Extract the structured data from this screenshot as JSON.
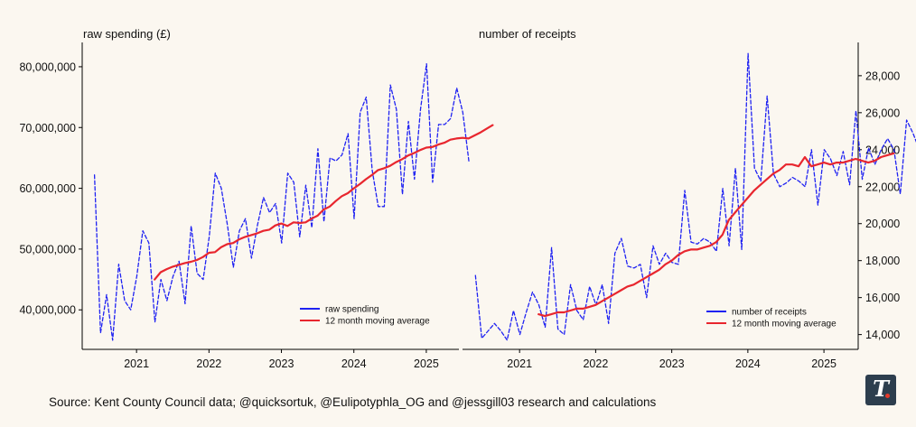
{
  "source": "Source: Kent County Council data; @quicksortuk, @Eulipotyphla_OG and @jessgill03 research and calculations",
  "logo": {
    "letter": "T",
    "name": "publisher-logo"
  },
  "colors": {
    "background": "#fbf7f0",
    "raw": "#1f22f2",
    "avg": "#e8262e",
    "logo_bg": "#2d3e4e",
    "logo_dot": "#e5392b"
  },
  "chart_data": [
    {
      "type": "line",
      "title": "raw spending (£)",
      "xlabel": "",
      "ylabel": "",
      "xlim": [
        2020.25,
        2025.45
      ],
      "ylim": [
        33500000,
        84000000
      ],
      "x_ticks": [
        2021,
        2022,
        2023,
        2024,
        2025
      ],
      "x_tick_labels": [
        "2021",
        "2022",
        "2023",
        "2024",
        "2025"
      ],
      "y_ticks": [
        40000000,
        50000000,
        60000000,
        70000000,
        80000000
      ],
      "y_tick_labels": [
        "40,000,000",
        "50,000,000",
        "60,000,000",
        "70,000,000",
        "80,000,000"
      ],
      "y_axis_side": "left",
      "legend_position": "lower-right",
      "series": [
        {
          "name": "raw spending",
          "style": "dashed",
          "color": "#1f22f2",
          "start": 2020.42,
          "values": [
            62200000,
            36200000,
            42500000,
            35000000,
            47500000,
            41500000,
            40000000,
            45500000,
            53000000,
            51000000,
            38000000,
            45000000,
            41500000,
            45500000,
            48000000,
            41000000,
            53800000,
            46000000,
            45000000,
            52000000,
            62500000,
            60000000,
            54000000,
            47000000,
            53000000,
            55000000,
            48500000,
            54000000,
            58500000,
            56000000,
            57500000,
            51000000,
            62500000,
            61000000,
            52000000,
            60500000,
            53500000,
            66500000,
            54500000,
            65000000,
            64500000,
            65500000,
            69000000,
            55000000,
            72500000,
            75000000,
            63000000,
            57000000,
            57000000,
            77000000,
            73000000,
            59000000,
            71000000,
            61500000,
            73000000,
            80500000,
            61000000,
            70500000,
            70500000,
            71500000,
            76500000,
            72500000,
            64500000
          ]
        },
        {
          "name": "12 month moving average",
          "style": "solid",
          "color": "#e8262e",
          "start": 2021.25,
          "values": [
            45000000,
            46200000,
            46700000,
            47100000,
            47400000,
            47700000,
            47900000,
            48200000,
            48700000,
            49400000,
            49500000,
            50300000,
            50800000,
            51000000,
            51600000,
            52000000,
            52300000,
            52600000,
            53000000,
            53200000,
            53900000,
            54200000,
            53800000,
            54400000,
            54300000,
            54400000,
            55000000,
            55500000,
            56500000,
            57000000,
            57900000,
            58700000,
            59200000,
            60000000,
            60700000,
            61500000,
            62200000,
            63000000,
            63300000,
            63700000,
            64300000,
            64800000,
            65400000,
            65800000,
            66300000,
            66700000,
            66800000,
            67200000,
            67500000,
            68000000,
            68200000,
            68300000,
            68200000,
            68700000,
            69200000,
            69800000,
            70400000
          ]
        }
      ]
    },
    {
      "type": "line",
      "title": "number of receipts",
      "xlabel": "",
      "ylabel": "",
      "xlim": [
        2020.25,
        2025.45
      ],
      "ylim": [
        13200,
        29800
      ],
      "x_ticks": [
        2021,
        2022,
        2023,
        2024,
        2025
      ],
      "x_tick_labels": [
        "2021",
        "2022",
        "2023",
        "2024",
        "2025"
      ],
      "y_ticks": [
        14000,
        16000,
        18000,
        20000,
        22000,
        24000,
        26000,
        28000
      ],
      "y_tick_labels": [
        "14,000",
        "16,000",
        "18,000",
        "20,000",
        "22,000",
        "24,000",
        "26,000",
        "28,000"
      ],
      "y_axis_side": "right",
      "legend_position": "lower-right",
      "series": [
        {
          "name": "number of receipts",
          "style": "dashed",
          "color": "#1f22f2",
          "start": 2020.42,
          "values": [
            17200,
            13800,
            14200,
            14600,
            14200,
            13700,
            15300,
            14000,
            15200,
            16300,
            15600,
            14400,
            18700,
            14300,
            14000,
            16700,
            15300,
            14800,
            16600,
            15600,
            16700,
            14600,
            18400,
            19200,
            17700,
            17600,
            17800,
            16000,
            18800,
            17800,
            18400,
            17900,
            17800,
            21800,
            19000,
            18900,
            19200,
            19000,
            18500,
            21900,
            18800,
            23000,
            18600,
            29200,
            23000,
            22300,
            26900,
            22700,
            22000,
            22200,
            22500,
            22300,
            22000,
            24000,
            21000,
            24000,
            23500,
            22600,
            23900,
            22100,
            26100,
            22400,
            24100,
            23200,
            24000,
            24600,
            24000,
            21600,
            25600,
            24900,
            24000,
            22700
          ]
        },
        {
          "name": "12 month moving average",
          "style": "solid",
          "color": "#e8262e",
          "start": 2021.25,
          "values": [
            15100,
            15000,
            15100,
            15200,
            15200,
            15300,
            15400,
            15400,
            15500,
            15600,
            15800,
            16000,
            16200,
            16400,
            16600,
            16700,
            16900,
            17100,
            17300,
            17500,
            17800,
            18000,
            18300,
            18500,
            18600,
            18600,
            18700,
            18800,
            19000,
            19400,
            20200,
            20600,
            21000,
            21400,
            21800,
            22100,
            22400,
            22700,
            22900,
            23200,
            23200,
            23100,
            23600,
            23100,
            23200,
            23300,
            23200,
            23300,
            23300,
            23400,
            23500,
            23400,
            23300,
            23400,
            23600,
            23700,
            23800
          ]
        }
      ]
    }
  ]
}
